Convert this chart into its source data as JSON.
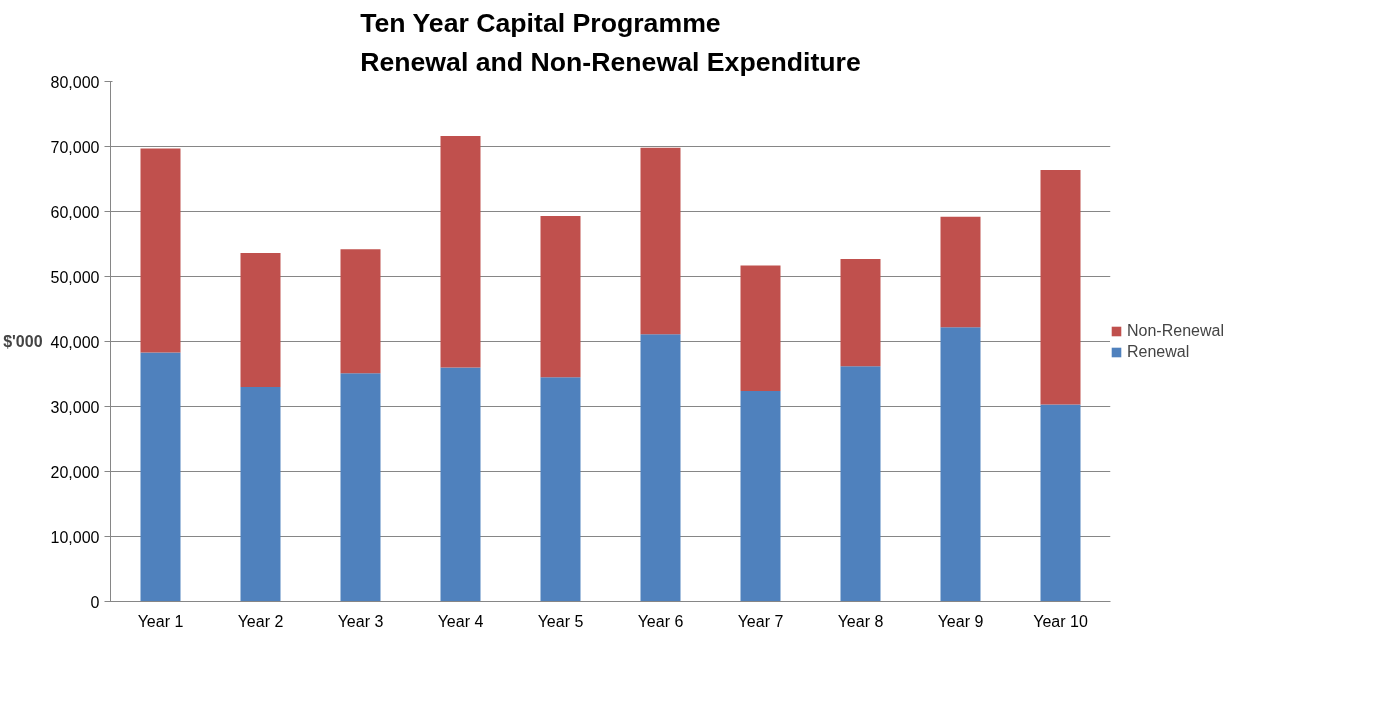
{
  "chart_data": {
    "type": "bar",
    "title": "Ten Year Capital Programme\nRenewal and Non-Renewal Expenditure",
    "ylabel": "$'000",
    "categories": [
      "Year 1",
      "Year 2",
      "Year 3",
      "Year 4",
      "Year 5",
      "Year 6",
      "Year 7",
      "Year 8",
      "Year 9",
      "Year 10"
    ],
    "stacked": true,
    "series": [
      {
        "name": "Renewal",
        "color": "#4f81bd",
        "values": [
          38300,
          33000,
          35100,
          36000,
          34500,
          41100,
          32400,
          36200,
          42200,
          30300
        ]
      },
      {
        "name": "Non-Renewal",
        "color": "#c0504d",
        "values": [
          31400,
          20600,
          19100,
          35600,
          24800,
          28700,
          19300,
          16500,
          17000,
          36100
        ]
      }
    ],
    "ylim": [
      0,
      80000
    ],
    "yticks": [
      {
        "value": 0,
        "label": "0"
      },
      {
        "value": 10000,
        "label": "10,000"
      },
      {
        "value": 20000,
        "label": "20,000"
      },
      {
        "value": 30000,
        "label": "30,000"
      },
      {
        "value": 40000,
        "label": "40,000"
      },
      {
        "value": 50000,
        "label": "50,000"
      },
      {
        "value": 60000,
        "label": "60,000"
      },
      {
        "value": 70000,
        "label": "70,000"
      },
      {
        "value": 80000,
        "label": "80,000"
      }
    ],
    "grid": "y",
    "legend": "right"
  }
}
